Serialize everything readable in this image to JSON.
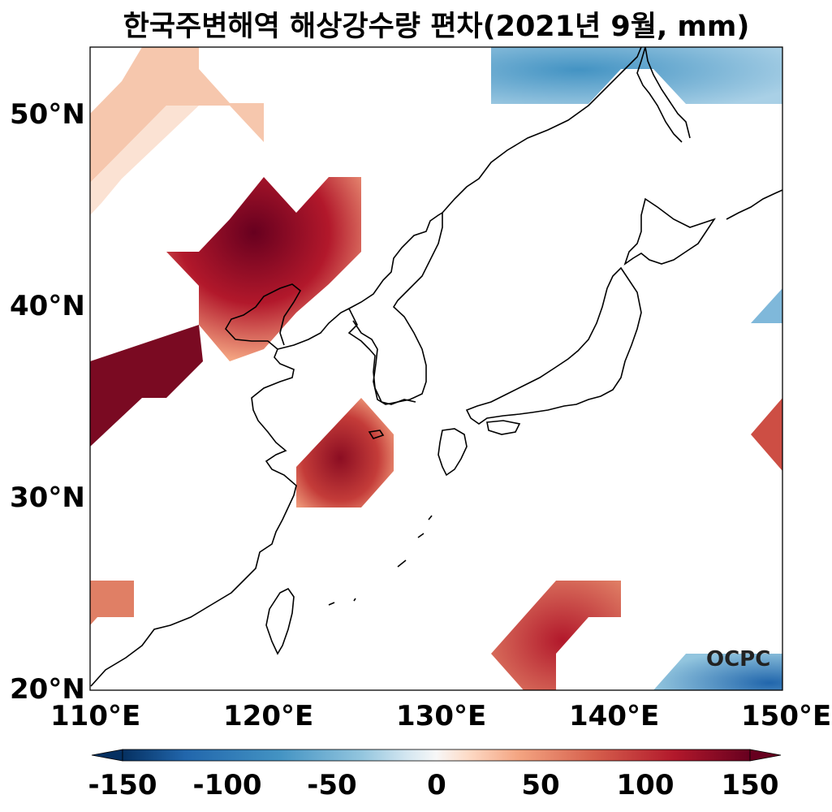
{
  "title": "한국주변해역 해상강수량 편차(2021년 9월, mm)",
  "logo": "OCPC",
  "map": {
    "lon_range": [
      110,
      150
    ],
    "lat_range": [
      20,
      53.5
    ],
    "x_ticks": [
      "110°E",
      "120°E",
      "130°E",
      "140°E",
      "150°E"
    ],
    "y_ticks": [
      "50°N",
      "40°N",
      "30°N",
      "20°N"
    ]
  },
  "colorbar": {
    "colormap": "RdBu_r",
    "range": [
      -150,
      150
    ],
    "ticks": [
      "-150",
      "-100",
      "-50",
      "0",
      "50",
      "100",
      "150"
    ],
    "colors": [
      "#053061",
      "#2166ac",
      "#4393c3",
      "#92c5de",
      "#d1e5f0",
      "#f7f7f7",
      "#fddbc7",
      "#f4a582",
      "#d6604d",
      "#b2182b",
      "#67001f"
    ]
  }
}
